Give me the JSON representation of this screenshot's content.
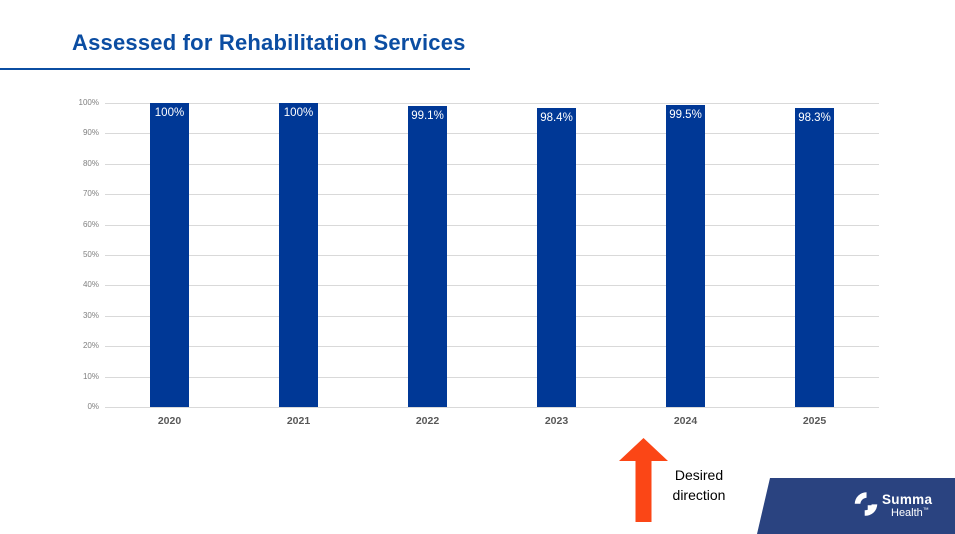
{
  "slide": {
    "title": "Assessed for Rehabilitation Services"
  },
  "chart_data": {
    "type": "bar",
    "title": "Assessed for Rehabilitation Services",
    "categories": [
      "2020",
      "2021",
      "2022",
      "2023",
      "2024",
      "2025"
    ],
    "values": [
      100,
      100,
      99.1,
      98.4,
      99.5,
      98.3
    ],
    "bar_labels": [
      "100%",
      "100%",
      "99.1%",
      "98.4%",
      "99.5%",
      "98.3%"
    ],
    "xlabel": "",
    "ylabel": "",
    "ylim": [
      0,
      100
    ],
    "y_tick_labels": [
      "0%",
      "10%",
      "20%",
      "30%",
      "40%",
      "50%",
      "60%",
      "70%",
      "80%",
      "90%",
      "100%"
    ],
    "grid": true,
    "legend": false,
    "bar_color": "#003896",
    "bar_label_color": "#FFFFFF"
  },
  "annotation": {
    "text": "Desired direction",
    "arrow_direction": "up",
    "arrow_color": "#FB4616"
  },
  "footer": {
    "band_color": "#2A4380",
    "logo_name_line1": "Summa",
    "logo_name_line2": "Health",
    "trademark": "™"
  },
  "colors": {
    "title": "#0B4DA2",
    "underline": "#0B4DA2",
    "gridline": "#D9D9D9",
    "y_tick_text": "#7F7F7F",
    "x_tick_text": "#595959",
    "background": "#FFFFFF"
  }
}
